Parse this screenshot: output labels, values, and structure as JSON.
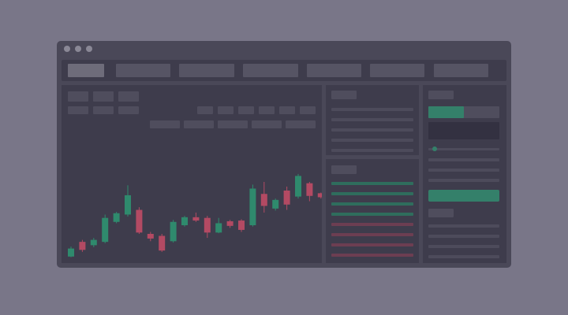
{
  "window": {
    "title": ""
  },
  "nav": {
    "tabs": [
      "",
      "",
      "",
      "",
      "",
      "",
      ""
    ],
    "active_index": 0
  },
  "colors": {
    "background": "#797688",
    "window": "#4a4858",
    "panel": "#3e3c4c",
    "bull": "#2f8a6d",
    "bear": "#b34a63",
    "bull_line": "#2f6d5d",
    "bear_line": "#6c3e52",
    "button": "#34806a"
  },
  "order_book": {
    "asks_rows": 5,
    "bids_rows": 4,
    "sells_rows": 4
  },
  "order_form": {
    "buy_sell_toggle": {
      "selected": "buy"
    },
    "slider_level": 0.05
  },
  "chart_data": {
    "type": "candlestick",
    "title": "",
    "xlabel": "",
    "ylabel": "",
    "candles": [
      {
        "o": 5,
        "c": 17,
        "h": 20,
        "l": 4
      },
      {
        "o": 27,
        "c": 15,
        "h": 30,
        "l": 12
      },
      {
        "o": 22,
        "c": 30,
        "h": 33,
        "l": 19
      },
      {
        "o": 27,
        "c": 63,
        "h": 68,
        "l": 25
      },
      {
        "o": 57,
        "c": 70,
        "h": 72,
        "l": 55
      },
      {
        "o": 68,
        "c": 97,
        "h": 112,
        "l": 65
      },
      {
        "o": 75,
        "c": 41,
        "h": 79,
        "l": 39
      },
      {
        "o": 39,
        "c": 32,
        "h": 42,
        "l": 28
      },
      {
        "o": 36,
        "c": 14,
        "h": 39,
        "l": 12
      },
      {
        "o": 28,
        "c": 57,
        "h": 60,
        "l": 26
      },
      {
        "o": 52,
        "c": 64,
        "h": 66,
        "l": 50
      },
      {
        "o": 64,
        "c": 59,
        "h": 71,
        "l": 57
      },
      {
        "o": 63,
        "c": 41,
        "h": 66,
        "l": 33
      },
      {
        "o": 41,
        "c": 55,
        "h": 63,
        "l": 40
      },
      {
        "o": 58,
        "c": 51,
        "h": 60,
        "l": 48
      },
      {
        "o": 59,
        "c": 45,
        "h": 61,
        "l": 42
      },
      {
        "o": 52,
        "c": 107,
        "h": 113,
        "l": 50
      },
      {
        "o": 99,
        "c": 81,
        "h": 117,
        "l": 71
      },
      {
        "o": 77,
        "c": 90,
        "h": 92,
        "l": 74
      },
      {
        "o": 104,
        "c": 83,
        "h": 110,
        "l": 75
      },
      {
        "o": 95,
        "c": 126,
        "h": 129,
        "l": 92
      },
      {
        "o": 115,
        "c": 96,
        "h": 117,
        "l": 88
      },
      {
        "o": 100,
        "c": 94,
        "h": 101,
        "l": 92
      }
    ],
    "ylim": [
      0,
      130
    ],
    "grid": false
  }
}
